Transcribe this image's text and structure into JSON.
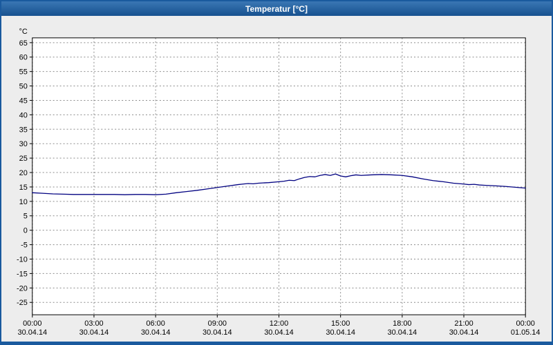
{
  "window": {
    "title": "Temperatur [°C]",
    "titlebar_color": "#1a5a9e",
    "background": "#ededed"
  },
  "chart_data": {
    "type": "line",
    "title": "Temperatur [°C]",
    "unit_label": "°C",
    "grid": true,
    "legend": "none",
    "plot_background": "#ffffff",
    "grid_color": "#8a8a8a",
    "y_axis": {
      "ticks": [
        65,
        60,
        55,
        50,
        45,
        40,
        35,
        30,
        25,
        20,
        15,
        10,
        5,
        0,
        -5,
        -10,
        -15,
        -20,
        -25
      ],
      "tick_step": 5,
      "ylim": [
        -29.5,
        66.7
      ]
    },
    "x_axis": {
      "hours_span": 24,
      "ticks": [
        {
          "hour": 0,
          "time": "00:00",
          "date": "30.04.14"
        },
        {
          "hour": 3,
          "time": "03:00",
          "date": "30.04.14"
        },
        {
          "hour": 6,
          "time": "06:00",
          "date": "30.04.14"
        },
        {
          "hour": 9,
          "time": "09:00",
          "date": "30.04.14"
        },
        {
          "hour": 12,
          "time": "12:00",
          "date": "30.04.14"
        },
        {
          "hour": 15,
          "time": "15:00",
          "date": "30.04.14"
        },
        {
          "hour": 18,
          "time": "18:00",
          "date": "30.04.14"
        },
        {
          "hour": 21,
          "time": "21:00",
          "date": "30.04.14"
        },
        {
          "hour": 24,
          "time": "00:00",
          "date": "01.05.14"
        }
      ]
    },
    "series": [
      {
        "name": "Temperatur",
        "color": "#000080",
        "x": [
          0,
          0.5,
          1,
          1.5,
          2,
          2.5,
          3,
          3.5,
          4,
          4.5,
          5,
          5.5,
          6,
          6.5,
          7,
          7.5,
          8,
          8.5,
          9,
          9.5,
          10,
          10.25,
          10.5,
          10.75,
          11,
          11.5,
          12,
          12.25,
          12.5,
          12.75,
          13,
          13.25,
          13.5,
          13.75,
          14,
          14.25,
          14.5,
          14.75,
          15,
          15.25,
          15.5,
          15.75,
          16,
          16.5,
          17,
          17.5,
          18,
          18.5,
          19,
          19.5,
          20,
          20.5,
          21,
          21.25,
          21.5,
          21.75,
          22,
          22.5,
          23,
          23.5,
          24
        ],
        "values": [
          13,
          12.8,
          12.6,
          12.5,
          12.4,
          12.4,
          12.4,
          12.4,
          12.4,
          12.3,
          12.4,
          12.4,
          12.3,
          12.5,
          13,
          13.4,
          13.8,
          14.3,
          14.8,
          15.3,
          15.8,
          16,
          16.2,
          16.1,
          16.3,
          16.5,
          16.8,
          17,
          17.3,
          17.2,
          17.8,
          18.3,
          18.6,
          18.5,
          19,
          19.3,
          19,
          19.5,
          18.8,
          18.5,
          18.9,
          19.2,
          19,
          19.2,
          19.3,
          19.2,
          19,
          18.5,
          17.8,
          17.2,
          16.8,
          16.3,
          16,
          15.8,
          15.9,
          15.7,
          15.6,
          15.4,
          15.2,
          14.9,
          14.6
        ]
      }
    ]
  }
}
